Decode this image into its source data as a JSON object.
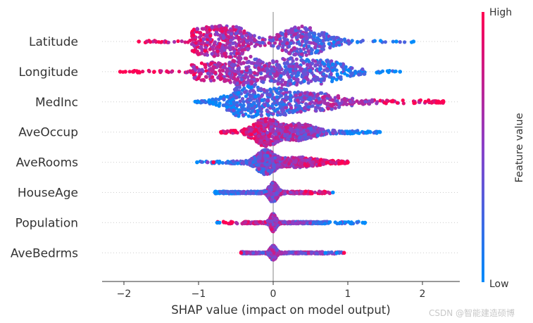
{
  "chart_data": {
    "type": "scatter",
    "subtype": "shap-beeswarm",
    "xlabel": "SHAP value (impact on model output)",
    "xlim": [
      -2.25,
      2.5
    ],
    "xticks": [
      -2,
      -1,
      0,
      1,
      2
    ],
    "xtick_labels": [
      "−2",
      "−1",
      "0",
      "1",
      "2"
    ],
    "features": [
      "Latitude",
      "Longitude",
      "MedInc",
      "AveOccup",
      "AveRooms",
      "HouseAge",
      "Population",
      "AveBedrms"
    ],
    "series": [
      {
        "name": "Latitude",
        "min": -1.8,
        "max": 1.88,
        "core": [
          -1.1,
          1.05
        ],
        "spread": 0.45,
        "peaks": [
          {
            "x": -0.9,
            "w": 0.5,
            "h": 0.85
          },
          {
            "x": -0.55,
            "w": 0.25,
            "h": 0.6
          },
          {
            "x": 0.4,
            "w": 0.35,
            "h": 1.0
          }
        ],
        "color_trend": "high-left",
        "outliers": [
          {
            "x": -1.8,
            "color": "high"
          },
          {
            "x": 1.65,
            "color": "low"
          },
          {
            "x": 1.88,
            "color": "low"
          }
        ]
      },
      {
        "name": "Longitude",
        "min": -2.05,
        "max": 1.7,
        "core": [
          -1.1,
          1.25
        ],
        "spread": 0.43,
        "peaks": [
          {
            "x": -0.8,
            "w": 0.45,
            "h": 0.6
          },
          {
            "x": -0.35,
            "w": 0.2,
            "h": 0.8
          },
          {
            "x": 0.2,
            "w": 0.35,
            "h": 0.9
          },
          {
            "x": 0.75,
            "w": 0.3,
            "h": 0.7
          }
        ],
        "color_trend": "high-left",
        "outliers": [
          {
            "x": -2.05,
            "color": "high"
          },
          {
            "x": -1.98,
            "color": "high"
          },
          {
            "x": -1.88,
            "color": "high"
          },
          {
            "x": -1.8,
            "color": "high"
          },
          {
            "x": 1.7,
            "color": "low"
          }
        ]
      },
      {
        "name": "MedInc",
        "min": -1.05,
        "max": 2.28,
        "core": [
          -0.9,
          2.15
        ],
        "spread": 0.46,
        "peaks": [
          {
            "x": -0.4,
            "w": 0.25,
            "h": 1.0
          },
          {
            "x": 0.05,
            "w": 0.3,
            "h": 0.75
          },
          {
            "x": 0.6,
            "w": 0.4,
            "h": 0.5
          }
        ],
        "color_trend": "high-right",
        "outliers": [
          {
            "x": -1.0,
            "color": "low"
          },
          {
            "x": 2.2,
            "color": "high"
          },
          {
            "x": 2.28,
            "color": "high"
          }
        ]
      },
      {
        "name": "AveOccup",
        "min": -0.7,
        "max": 1.43,
        "core": [
          -0.6,
          1.2
        ],
        "spread": 0.42,
        "peaks": [
          {
            "x": -0.1,
            "w": 0.2,
            "h": 1.0
          },
          {
            "x": 0.35,
            "w": 0.25,
            "h": 0.55
          }
        ],
        "color_trend": "high-left",
        "outliers": [
          {
            "x": -0.7,
            "color": "high"
          },
          {
            "x": 1.43,
            "color": "low"
          },
          {
            "x": 1.3,
            "color": "low"
          }
        ]
      },
      {
        "name": "AveRooms",
        "min": -1.02,
        "max": 1.0,
        "core": [
          -0.6,
          0.9
        ],
        "spread": 0.36,
        "peaks": [
          {
            "x": -0.1,
            "w": 0.15,
            "h": 1.0
          },
          {
            "x": 0.35,
            "w": 0.3,
            "h": 0.35
          }
        ],
        "color_trend": "high-right",
        "outliers": [
          {
            "x": -1.02,
            "color": "low"
          },
          {
            "x": -0.88,
            "color": "mid"
          },
          {
            "x": -0.8,
            "color": "high"
          },
          {
            "x": -0.72,
            "color": "low"
          },
          {
            "x": 1.0,
            "color": "high"
          },
          {
            "x": 0.92,
            "color": "high"
          }
        ]
      },
      {
        "name": "HouseAge",
        "min": -0.78,
        "max": 0.8,
        "core": [
          -0.7,
          0.52
        ],
        "spread": 0.3,
        "peaks": [
          {
            "x": 0.0,
            "w": 0.07,
            "h": 1.0
          }
        ],
        "color_trend": "high-right",
        "outliers": [
          {
            "x": -0.78,
            "color": "low"
          },
          {
            "x": 0.8,
            "color": "low"
          },
          {
            "x": 0.5,
            "color": "high"
          }
        ]
      },
      {
        "name": "Population",
        "min": -0.75,
        "max": 1.23,
        "core": [
          -0.4,
          0.75
        ],
        "spread": 0.26,
        "peaks": [
          {
            "x": 0.0,
            "w": 0.05,
            "h": 1.0
          }
        ],
        "color_trend": "high-left",
        "outliers": [
          {
            "x": -0.75,
            "color": "low"
          },
          {
            "x": -0.72,
            "color": "low"
          },
          {
            "x": 0.9,
            "color": "low"
          },
          {
            "x": 1.2,
            "color": "low"
          },
          {
            "x": 1.23,
            "color": "low"
          }
        ]
      },
      {
        "name": "AveBedrms",
        "min": -0.43,
        "max": 0.95,
        "core": [
          -0.4,
          0.65
        ],
        "spread": 0.22,
        "peaks": [
          {
            "x": 0.0,
            "w": 0.05,
            "h": 1.0
          }
        ],
        "color_trend": "mixed",
        "outliers": [
          {
            "x": -0.43,
            "color": "high"
          },
          {
            "x": 0.7,
            "color": "low"
          },
          {
            "x": 0.85,
            "color": "low"
          },
          {
            "x": 0.95,
            "color": "high"
          }
        ]
      }
    ],
    "colorbar": {
      "label": "Feature value",
      "high_label": "High",
      "low_label": "Low",
      "high_color": "#ff0052",
      "low_color": "#008bfb",
      "mid_color": "#8a40c8"
    }
  },
  "watermark": "CSDN @智能建造硕博"
}
